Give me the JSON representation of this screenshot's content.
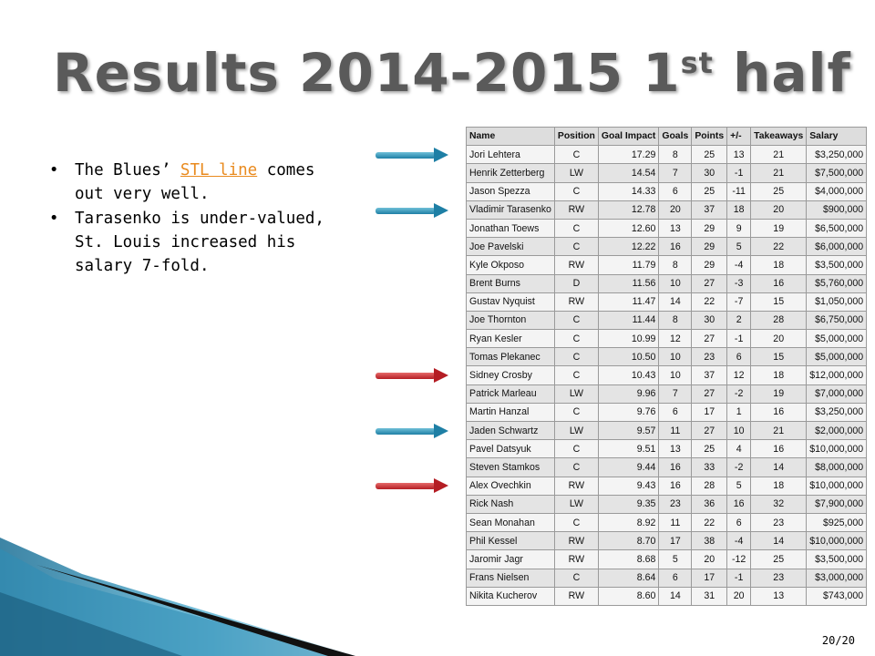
{
  "slide": {
    "title_main": "Results 2014-2015 1",
    "title_sup": "st",
    "title_end": " half",
    "page_number": "20/20"
  },
  "bullets": [
    {
      "before": "The Blues’ ",
      "link": "STL line",
      "after": " comes out very well."
    },
    {
      "text": "Tarasenko is under-valued, St. Louis increased his salary 7-fold."
    }
  ],
  "colors": {
    "title": "#5a5a5a",
    "link": "#e98a1e",
    "arrow_blue": "#1e7fa5",
    "arrow_red": "#b41d24"
  },
  "table": {
    "headers": [
      "Name",
      "Position",
      "Goal Impact",
      "Goals",
      "Points",
      "+/-",
      "Takeaways",
      "Salary"
    ],
    "rows": [
      [
        "Jori Lehtera",
        "C",
        "17.29",
        "8",
        "25",
        "13",
        "21",
        "$3,250,000"
      ],
      [
        "Henrik Zetterberg",
        "LW",
        "14.54",
        "7",
        "30",
        "-1",
        "21",
        "$7,500,000"
      ],
      [
        "Jason Spezza",
        "C",
        "14.33",
        "6",
        "25",
        "-11",
        "25",
        "$4,000,000"
      ],
      [
        "Vladimir Tarasenko",
        "RW",
        "12.78",
        "20",
        "37",
        "18",
        "20",
        "$900,000"
      ],
      [
        "Jonathan Toews",
        "C",
        "12.60",
        "13",
        "29",
        "9",
        "19",
        "$6,500,000"
      ],
      [
        "Joe Pavelski",
        "C",
        "12.22",
        "16",
        "29",
        "5",
        "22",
        "$6,000,000"
      ],
      [
        "Kyle Okposo",
        "RW",
        "11.79",
        "8",
        "29",
        "-4",
        "18",
        "$3,500,000"
      ],
      [
        "Brent Burns",
        "D",
        "11.56",
        "10",
        "27",
        "-3",
        "16",
        "$5,760,000"
      ],
      [
        "Gustav Nyquist",
        "RW",
        "11.47",
        "14",
        "22",
        "-7",
        "15",
        "$1,050,000"
      ],
      [
        "Joe Thornton",
        "C",
        "11.44",
        "8",
        "30",
        "2",
        "28",
        "$6,750,000"
      ],
      [
        "Ryan Kesler",
        "C",
        "10.99",
        "12",
        "27",
        "-1",
        "20",
        "$5,000,000"
      ],
      [
        "Tomas Plekanec",
        "C",
        "10.50",
        "10",
        "23",
        "6",
        "15",
        "$5,000,000"
      ],
      [
        "Sidney Crosby",
        "C",
        "10.43",
        "10",
        "37",
        "12",
        "18",
        "$12,000,000"
      ],
      [
        "Patrick Marleau",
        "LW",
        "9.96",
        "7",
        "27",
        "-2",
        "19",
        "$7,000,000"
      ],
      [
        "Martin Hanzal",
        "C",
        "9.76",
        "6",
        "17",
        "1",
        "16",
        "$3,250,000"
      ],
      [
        "Jaden Schwartz",
        "LW",
        "9.57",
        "11",
        "27",
        "10",
        "21",
        "$2,000,000"
      ],
      [
        "Pavel Datsyuk",
        "C",
        "9.51",
        "13",
        "25",
        "4",
        "16",
        "$10,000,000"
      ],
      [
        "Steven Stamkos",
        "C",
        "9.44",
        "16",
        "33",
        "-2",
        "14",
        "$8,000,000"
      ],
      [
        "Alex Ovechkin",
        "RW",
        "9.43",
        "16",
        "28",
        "5",
        "18",
        "$10,000,000"
      ],
      [
        "Rick Nash",
        "LW",
        "9.35",
        "23",
        "36",
        "16",
        "32",
        "$7,900,000"
      ],
      [
        "Sean Monahan",
        "C",
        "8.92",
        "11",
        "22",
        "6",
        "23",
        "$925,000"
      ],
      [
        "Phil Kessel",
        "RW",
        "8.70",
        "17",
        "38",
        "-4",
        "14",
        "$10,000,000"
      ],
      [
        "Jaromir Jagr",
        "RW",
        "8.68",
        "5",
        "20",
        "-12",
        "25",
        "$3,500,000"
      ],
      [
        "Frans Nielsen",
        "C",
        "8.64",
        "6",
        "17",
        "-1",
        "23",
        "$3,000,000"
      ],
      [
        "Nikita Kucherov",
        "RW",
        "8.60",
        "14",
        "31",
        "20",
        "13",
        "$743,000"
      ]
    ]
  }
}
